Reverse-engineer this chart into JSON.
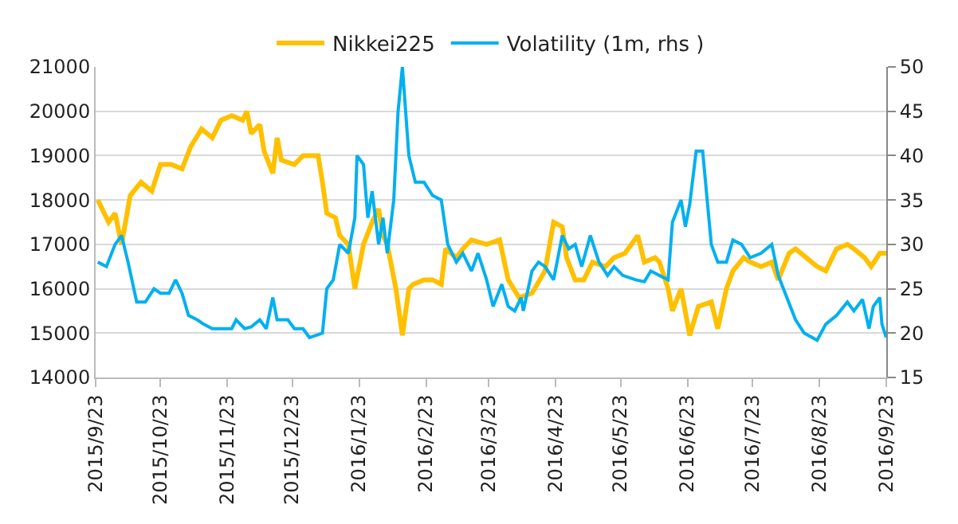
{
  "chart_data": {
    "type": "line",
    "legend": "top",
    "grid": "y",
    "marker": "none",
    "x": [
      "2015-09-24",
      "2015-09-29",
      "2015-10-02",
      "2015-10-05",
      "2015-10-09",
      "2015-10-14",
      "2015-10-19",
      "2015-10-23",
      "2015-10-28",
      "2015-11-02",
      "2015-11-06",
      "2015-11-11",
      "2015-11-16",
      "2015-11-20",
      "2015-11-25",
      "2015-11-30",
      "2015-12-02",
      "2015-12-04",
      "2015-12-08",
      "2015-12-10",
      "2015-12-14",
      "2015-12-16",
      "2015-12-18",
      "2015-12-24",
      "2015-12-28",
      "2016-01-04",
      "2016-01-06",
      "2016-01-08",
      "2016-01-12",
      "2016-01-14",
      "2016-01-18",
      "2016-01-21",
      "2016-01-25",
      "2016-01-29",
      "2016-02-01",
      "2016-02-03",
      "2016-02-05",
      "2016-02-09",
      "2016-02-12",
      "2016-02-15",
      "2016-02-17",
      "2016-02-22",
      "2016-02-26",
      "2016-03-01",
      "2016-03-03",
      "2016-03-08",
      "2016-03-11",
      "2016-03-15",
      "2016-03-22",
      "2016-03-28",
      "2016-04-01",
      "2016-04-06",
      "2016-04-12",
      "2016-04-18",
      "2016-04-22",
      "2016-04-26",
      "2016-04-28",
      "2016-05-02",
      "2016-05-06",
      "2016-05-10",
      "2016-05-16",
      "2016-05-20",
      "2016-05-25",
      "2016-05-31",
      "2016-06-03",
      "2016-06-08",
      "2016-06-10",
      "2016-06-14",
      "2016-06-16",
      "2016-06-20",
      "2016-06-24",
      "2016-06-28",
      "2016-07-04",
      "2016-07-07",
      "2016-07-11",
      "2016-07-14",
      "2016-07-19",
      "2016-07-22",
      "2016-07-27",
      "2016-08-01",
      "2016-08-04",
      "2016-08-09",
      "2016-08-12",
      "2016-08-17",
      "2016-08-22",
      "2016-08-26",
      "2016-08-31",
      "2016-09-05",
      "2016-09-08",
      "2016-09-13",
      "2016-09-16",
      "2016-09-20",
      "2016-09-23"
    ],
    "series": [
      {
        "name": "Nikkei225",
        "color": "#ffc000",
        "values": [
          18000,
          17500,
          17700,
          17000,
          18100,
          18400,
          18200,
          18800,
          18800,
          18700,
          19200,
          19600,
          19400,
          19800,
          19900,
          19800,
          20000,
          19500,
          19700,
          19100,
          18600,
          19400,
          18900,
          18800,
          19000,
          19000,
          18400,
          17700,
          17600,
          17200,
          17000,
          16000,
          17000,
          17500,
          17800,
          17200,
          17000,
          16000,
          14950,
          16000,
          16100,
          16200,
          16200,
          16100,
          16900,
          16700,
          16900,
          17100,
          17000,
          17100,
          16200,
          15800,
          15900,
          16400,
          17500,
          17400,
          16700,
          16200,
          16200,
          16600,
          16500,
          16700,
          16800,
          17200,
          16600,
          16700,
          16600,
          16000,
          15500,
          16000,
          14950,
          15600,
          15700,
          15100,
          16000,
          16400,
          16700,
          16600,
          16500,
          16600,
          16200,
          16800,
          16900,
          16700,
          16500,
          16400,
          16900,
          17000,
          16900,
          16700,
          16500,
          16800,
          16800
        ]
      },
      {
        "name": "Volatility (1m, rhs )",
        "color": "#00b0f0",
        "axis": "y2",
        "x": [
          "2015-09-24",
          "2015-09-28",
          "2015-10-02",
          "2015-10-05",
          "2015-10-08",
          "2015-10-12",
          "2015-10-16",
          "2015-10-20",
          "2015-10-23",
          "2015-10-27",
          "2015-10-30",
          "2015-11-02",
          "2015-11-05",
          "2015-11-09",
          "2015-11-12",
          "2015-11-16",
          "2015-11-20",
          "2015-11-25",
          "2015-11-27",
          "2015-12-01",
          "2015-12-04",
          "2015-12-08",
          "2015-12-11",
          "2015-12-14",
          "2015-12-16",
          "2015-12-21",
          "2015-12-24",
          "2015-12-28",
          "2015-12-31",
          "2016-01-06",
          "2016-01-08",
          "2016-01-11",
          "2016-01-14",
          "2016-01-18",
          "2016-01-21",
          "2016-01-22",
          "2016-01-25",
          "2016-01-27",
          "2016-01-29",
          "2016-02-01",
          "2016-02-03",
          "2016-02-05",
          "2016-02-08",
          "2016-02-10",
          "2016-02-12",
          "2016-02-15",
          "2016-02-18",
          "2016-02-22",
          "2016-02-26",
          "2016-03-01",
          "2016-03-04",
          "2016-03-08",
          "2016-03-11",
          "2016-03-15",
          "2016-03-18",
          "2016-03-22",
          "2016-03-25",
          "2016-03-29",
          "2016-04-01",
          "2016-04-04",
          "2016-04-07",
          "2016-04-08",
          "2016-04-12",
          "2016-04-15",
          "2016-04-18",
          "2016-04-22",
          "2016-04-26",
          "2016-04-29",
          "2016-05-02",
          "2016-05-05",
          "2016-05-09",
          "2016-05-13",
          "2016-05-17",
          "2016-05-20",
          "2016-05-24",
          "2016-05-30",
          "2016-06-03",
          "2016-06-06",
          "2016-06-10",
          "2016-06-14",
          "2016-06-16",
          "2016-06-20",
          "2016-06-22",
          "2016-06-24",
          "2016-06-27",
          "2016-06-30",
          "2016-07-04",
          "2016-07-07",
          "2016-07-11",
          "2016-07-14",
          "2016-07-18",
          "2016-07-22",
          "2016-07-27",
          "2016-08-01",
          "2016-08-04",
          "2016-08-08",
          "2016-08-12",
          "2016-08-16",
          "2016-08-22",
          "2016-08-26",
          "2016-08-31",
          "2016-09-05",
          "2016-09-08",
          "2016-09-12",
          "2016-09-15",
          "2016-09-17",
          "2016-09-20",
          "2016-09-21",
          "2016-09-23"
        ],
        "values": [
          28,
          27.5,
          30,
          31,
          28,
          23.5,
          23.5,
          25,
          24.5,
          24.5,
          26,
          24.5,
          22,
          21.5,
          21,
          20.5,
          20.5,
          20.5,
          21.5,
          20.5,
          20.7,
          21.5,
          20.5,
          24,
          21.5,
          21.5,
          20.5,
          20.5,
          19.5,
          20,
          25,
          26,
          30,
          29,
          33,
          40,
          39,
          33,
          36,
          30,
          33,
          29,
          35,
          45,
          50,
          40,
          37,
          37,
          35.5,
          35,
          30,
          28,
          29,
          27,
          29,
          26,
          23,
          25.5,
          23,
          22.5,
          24,
          22.5,
          27,
          28,
          27.5,
          26,
          31,
          29.5,
          30,
          27.5,
          31,
          28,
          26.5,
          27.5,
          26.5,
          26,
          25.8,
          27,
          26.5,
          26,
          32.5,
          35,
          32,
          34.5,
          40.5,
          40.5,
          30,
          28,
          28,
          30.5,
          30,
          28.5,
          29,
          30,
          26.5,
          24,
          21.5,
          20,
          19.2,
          21,
          22,
          23.5,
          22.5,
          23.8,
          20.5,
          23,
          24,
          21,
          19.5
        ]
      }
    ],
    "xlim": [
      "2015-09-23",
      "2016-09-23"
    ],
    "xticks": [
      {
        "value": "2015-09-23",
        "label": "2015/9/23"
      },
      {
        "value": "2015-10-23",
        "label": "2015/10/23"
      },
      {
        "value": "2015-11-23",
        "label": "2015/11/23"
      },
      {
        "value": "2015-12-23",
        "label": "2015/12/23"
      },
      {
        "value": "2016-01-23",
        "label": "2016/1/23"
      },
      {
        "value": "2016-02-23",
        "label": "2016/2/23"
      },
      {
        "value": "2016-03-23",
        "label": "2016/3/23"
      },
      {
        "value": "2016-04-23",
        "label": "2016/4/23"
      },
      {
        "value": "2016-05-23",
        "label": "2016/5/23"
      },
      {
        "value": "2016-06-23",
        "label": "2016/6/23"
      },
      {
        "value": "2016-07-23",
        "label": "2016/7/23"
      },
      {
        "value": "2016-08-23",
        "label": "2016/8/23"
      },
      {
        "value": "2016-09-23",
        "label": "2016/9/23"
      }
    ],
    "ylim": [
      14000,
      21000
    ],
    "yticks": [
      14000,
      15000,
      16000,
      17000,
      18000,
      19000,
      20000,
      21000
    ],
    "y2lim": [
      15,
      50
    ],
    "y2ticks": [
      15,
      20,
      25,
      30,
      35,
      40,
      45,
      50
    ]
  }
}
